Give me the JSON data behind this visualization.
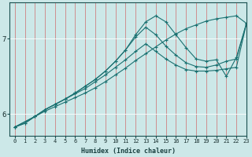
{
  "xlabel": "Humidex (Indice chaleur)",
  "bg_color": "#cce8e8",
  "line_color": "#1a7070",
  "grid_color": "#ffffff",
  "xmin": -0.5,
  "xmax": 23,
  "ymin": 5.72,
  "ymax": 7.48,
  "yticks": [
    6,
    7
  ],
  "xticks": [
    0,
    1,
    2,
    3,
    4,
    5,
    6,
    7,
    8,
    9,
    10,
    11,
    12,
    13,
    14,
    15,
    16,
    17,
    18,
    19,
    20,
    21,
    22,
    23
  ],
  "line1_x": [
    0,
    1,
    2,
    3,
    4,
    5,
    6,
    7,
    8,
    9,
    10,
    11,
    12,
    13,
    14,
    15,
    16,
    17,
    18,
    19,
    20,
    21,
    22,
    23
  ],
  "line1_y": [
    5.83,
    5.88,
    5.97,
    6.06,
    6.13,
    6.2,
    6.28,
    6.37,
    6.46,
    6.57,
    6.7,
    6.85,
    7.05,
    7.22,
    7.3,
    7.22,
    7.05,
    6.88,
    6.73,
    6.7,
    6.72,
    6.5,
    6.75,
    7.2
  ],
  "line2_x": [
    0,
    2,
    3,
    4,
    5,
    6,
    7,
    8,
    9,
    10,
    11,
    12,
    13,
    14,
    15,
    16,
    17,
    18,
    19,
    20,
    21,
    22,
    23
  ],
  "line2_y": [
    5.83,
    5.97,
    6.06,
    6.13,
    6.2,
    6.28,
    6.37,
    6.46,
    6.57,
    6.7,
    6.85,
    7.02,
    7.15,
    7.05,
    6.9,
    6.78,
    6.68,
    6.63,
    6.62,
    6.65,
    6.7,
    6.73,
    7.2
  ],
  "line3_x": [
    0,
    2,
    3,
    4,
    5,
    6,
    7,
    8,
    9,
    10,
    11,
    12,
    13,
    14,
    15,
    16,
    17,
    18,
    19,
    20,
    21,
    22,
    23
  ],
  "line3_y": [
    5.83,
    5.97,
    6.06,
    6.13,
    6.2,
    6.27,
    6.34,
    6.43,
    6.52,
    6.62,
    6.72,
    6.83,
    6.93,
    6.83,
    6.73,
    6.65,
    6.59,
    6.57,
    6.57,
    6.58,
    6.6,
    6.62,
    7.2
  ],
  "line4_x": [
    0,
    1,
    2,
    3,
    4,
    5,
    6,
    7,
    8,
    9,
    10,
    11,
    12,
    13,
    14,
    15,
    16,
    17,
    18,
    19,
    20,
    21,
    22,
    23
  ],
  "line4_y": [
    5.83,
    5.88,
    5.97,
    6.04,
    6.1,
    6.16,
    6.22,
    6.28,
    6.35,
    6.43,
    6.52,
    6.61,
    6.71,
    6.8,
    6.89,
    6.98,
    7.06,
    7.13,
    7.18,
    7.23,
    7.26,
    7.28,
    7.3,
    7.2
  ]
}
